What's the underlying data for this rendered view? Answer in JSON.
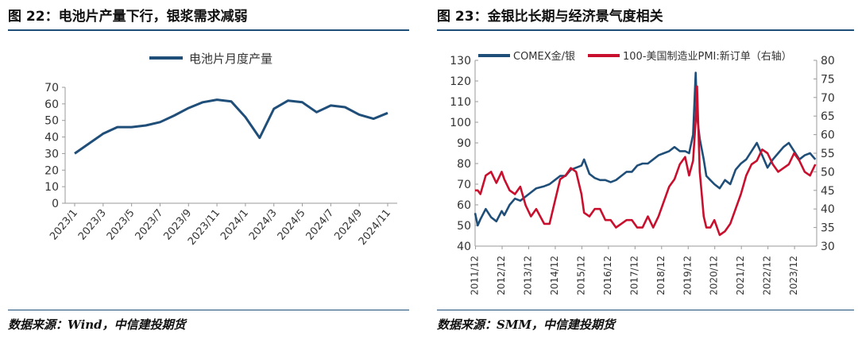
{
  "left": {
    "figure_title": "图 22：电池片产量下行，银浆需求减弱",
    "source": "数据来源：Wind，中信建投期货"
  },
  "right": {
    "figure_title": "图 23：金银比长期与经济景气度相关",
    "source": "数据来源：SMM，中信建投期货"
  },
  "colors": {
    "series_blue": "#1f4e79",
    "series_red": "#c8102e",
    "axis": "#9a9a9a"
  },
  "chart_data": [
    {
      "type": "line",
      "title": "",
      "legend_position": "top-center",
      "grid": false,
      "ylim": [
        0,
        70
      ],
      "yticks": [
        "0",
        "10",
        "20",
        "30",
        "40",
        "50",
        "60",
        "70"
      ],
      "x_tick_labels": [
        "2023/1",
        "2023/3",
        "2023/5",
        "2023/7",
        "2023/9",
        "2023/11",
        "2024/1",
        "2024/3",
        "2024/5",
        "2024/7",
        "2024/9",
        "2024/11"
      ],
      "x": [
        "2023/1",
        "2023/2",
        "2023/3",
        "2023/4",
        "2023/5",
        "2023/6",
        "2023/7",
        "2023/8",
        "2023/9",
        "2023/10",
        "2023/11",
        "2023/12",
        "2024/1",
        "2024/2",
        "2024/3",
        "2024/4",
        "2024/5",
        "2024/6",
        "2024/7",
        "2024/8",
        "2024/9",
        "2024/10",
        "2024/11"
      ],
      "series": [
        {
          "name": "电池片月度产量",
          "values": [
            30,
            36,
            42,
            46,
            46,
            47,
            49,
            53,
            57.5,
            61,
            62.5,
            61.5,
            52,
            39.5,
            57,
            62,
            61,
            55,
            59,
            58,
            53.5,
            51,
            54.5
          ]
        }
      ]
    },
    {
      "type": "line",
      "title": "",
      "legend_position": "top",
      "grid": false,
      "ylim": [
        40,
        130
      ],
      "yticks": [
        "40",
        "50",
        "60",
        "70",
        "80",
        "90",
        "100",
        "110",
        "120",
        "130"
      ],
      "y2lim": [
        30,
        80
      ],
      "y2ticks": [
        "30",
        "35",
        "40",
        "45",
        "50",
        "55",
        "60",
        "65",
        "70",
        "75",
        "80"
      ],
      "x_tick_labels": [
        "2011/12",
        "2012/12",
        "2013/12",
        "2014/12",
        "2015/12",
        "2016/12",
        "2017/12",
        "2018/12",
        "2019/12",
        "2020/12",
        "2021/12",
        "2022/12",
        "2023/12"
      ],
      "x_range": [
        2011.9,
        2024.75
      ],
      "series": [
        {
          "name": "COMEX金/银",
          "axis": "left",
          "x": [
            2011.9,
            2012.0,
            2012.1,
            2012.3,
            2012.5,
            2012.7,
            2012.9,
            2013.0,
            2013.2,
            2013.4,
            2013.6,
            2013.8,
            2014.0,
            2014.2,
            2014.5,
            2014.7,
            2014.9,
            2015.1,
            2015.3,
            2015.5,
            2015.7,
            2015.9,
            2016.0,
            2016.2,
            2016.4,
            2016.6,
            2016.8,
            2017.0,
            2017.2,
            2017.4,
            2017.6,
            2017.8,
            2018.0,
            2018.2,
            2018.4,
            2018.6,
            2018.8,
            2019.0,
            2019.2,
            2019.4,
            2019.6,
            2019.8,
            2019.95,
            2020.1,
            2020.2,
            2020.25,
            2020.35,
            2020.5,
            2020.6,
            2020.75,
            2020.9,
            2021.1,
            2021.3,
            2021.5,
            2021.7,
            2021.9,
            2022.1,
            2022.3,
            2022.5,
            2022.7,
            2022.9,
            2023.1,
            2023.3,
            2023.5,
            2023.7,
            2023.9,
            2024.1,
            2024.3,
            2024.5,
            2024.7
          ],
          "values": [
            56,
            50,
            53,
            58,
            54,
            52,
            57,
            55,
            60,
            63,
            62,
            64,
            66,
            68,
            69,
            70,
            72,
            74,
            74,
            77,
            78,
            79,
            82,
            75,
            73,
            72,
            72,
            71,
            72,
            74,
            76,
            76,
            79,
            80,
            80,
            82,
            84,
            85,
            86,
            88,
            86,
            86,
            85,
            94,
            124,
            103,
            92,
            82,
            74,
            72,
            70,
            68,
            72,
            70,
            77,
            80,
            82,
            86,
            90,
            84,
            78,
            82,
            85,
            88,
            90,
            86,
            82,
            84,
            85,
            82
          ]
        },
        {
          "name": "100-美国制造业PMI:新订单（右轴）",
          "axis": "right",
          "x": [
            2011.9,
            2012.0,
            2012.1,
            2012.3,
            2012.5,
            2012.7,
            2012.9,
            2013.0,
            2013.2,
            2013.4,
            2013.6,
            2013.8,
            2014.0,
            2014.2,
            2014.5,
            2014.7,
            2014.9,
            2015.1,
            2015.3,
            2015.5,
            2015.7,
            2015.9,
            2016.0,
            2016.2,
            2016.4,
            2016.6,
            2016.8,
            2017.0,
            2017.2,
            2017.4,
            2017.6,
            2017.8,
            2018.0,
            2018.2,
            2018.4,
            2018.6,
            2018.8,
            2019.0,
            2019.2,
            2019.4,
            2019.6,
            2019.8,
            2019.95,
            2020.1,
            2020.2,
            2020.25,
            2020.35,
            2020.5,
            2020.6,
            2020.75,
            2020.9,
            2021.1,
            2021.3,
            2021.5,
            2021.7,
            2021.9,
            2022.1,
            2022.3,
            2022.5,
            2022.7,
            2022.9,
            2023.1,
            2023.3,
            2023.5,
            2023.7,
            2023.9,
            2024.1,
            2024.3,
            2024.5,
            2024.7
          ],
          "values": [
            45,
            45,
            44,
            49,
            50,
            47,
            50,
            48,
            45,
            44,
            46,
            41,
            38,
            40,
            36,
            36,
            42,
            48,
            49,
            51,
            50,
            44,
            39,
            38,
            40,
            40,
            37,
            37,
            35,
            36,
            37,
            37,
            35,
            35,
            38,
            35,
            38,
            42,
            46,
            48,
            52,
            54,
            49,
            53,
            64,
            73,
            50,
            38,
            35,
            35,
            37,
            33,
            34,
            36,
            40,
            44,
            49,
            52,
            53,
            56,
            55,
            52,
            50,
            51,
            52,
            55,
            53,
            50,
            49,
            52
          ]
        }
      ]
    }
  ]
}
